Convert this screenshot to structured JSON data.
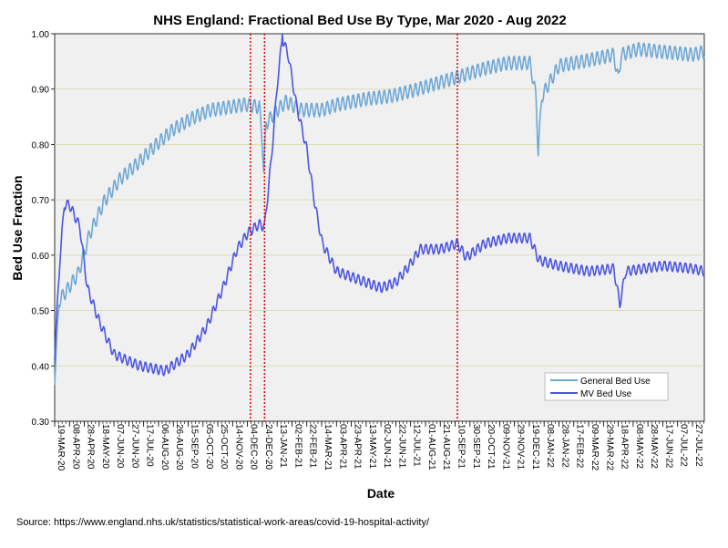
{
  "chart_data": {
    "type": "line",
    "title": "NHS England: Fractional Bed Use By Type, Mar 2020 - Aug 2022",
    "xlabel": "Date",
    "ylabel": "Bed Use Fraction",
    "ylim": [
      0.3,
      1.0
    ],
    "yticks": [
      "0.30",
      "0.40",
      "0.50",
      "0.60",
      "0.70",
      "0.80",
      "0.90",
      "1.00"
    ],
    "grid": "horizontal",
    "x_start": "2020-03-19",
    "x_end": "2022-08-12",
    "xticks": [
      "19-MAR-20",
      "08-APR-20",
      "28-APR-20",
      "18-MAY-20",
      "07-JUN-20",
      "27-JUN-20",
      "17-JUL-20",
      "06-AUG-20",
      "26-AUG-20",
      "15-SEP-20",
      "05-OCT-20",
      "25-OCT-20",
      "14-NOV-20",
      "04-DEC-20",
      "24-DEC-20",
      "13-JAN-21",
      "02-FEB-21",
      "22-FEB-21",
      "14-MAR-21",
      "03-APR-21",
      "23-APR-21",
      "13-MAY-21",
      "02-JUN-21",
      "22-JUN-21",
      "12-JUL-21",
      "01-AUG-21",
      "21-AUG-21",
      "10-SEP-21",
      "30-SEP-21",
      "20-OCT-21",
      "09-NOV-21",
      "29-NOV-21",
      "19-DEC-21",
      "08-JAN-22",
      "28-JAN-22",
      "17-FEB-22",
      "09-MAR-22",
      "29-MAR-22",
      "18-APR-22",
      "08-MAY-22",
      "28-MAY-22",
      "17-JUN-22",
      "07-JUL-22",
      "27-JUL-22"
    ],
    "reference_lines": [
      "2020-12-08",
      "2020-12-27",
      "2021-09-13"
    ],
    "legend": {
      "position": "bottom-right",
      "entries": [
        "General Bed Use",
        "MV Bed Use"
      ]
    },
    "series": [
      {
        "name": "General Bed Use",
        "color": "#6fa8d6",
        "weekly_amplitude": 0.025,
        "anchors": [
          [
            "2020-03-19",
            0.39
          ],
          [
            "2020-03-25",
            0.53
          ],
          [
            "2020-04-05",
            0.55
          ],
          [
            "2020-04-20",
            0.58
          ],
          [
            "2020-05-05",
            0.65
          ],
          [
            "2020-05-25",
            0.71
          ],
          [
            "2020-06-15",
            0.75
          ],
          [
            "2020-07-10",
            0.78
          ],
          [
            "2020-08-01",
            0.81
          ],
          [
            "2020-08-26",
            0.84
          ],
          [
            "2020-09-20",
            0.86
          ],
          [
            "2020-10-15",
            0.875
          ],
          [
            "2020-11-10",
            0.88
          ],
          [
            "2020-12-01",
            0.885
          ],
          [
            "2020-12-20",
            0.88
          ],
          [
            "2020-12-24",
            0.82
          ],
          [
            "2020-12-26",
            0.76
          ],
          [
            "2020-12-29",
            0.85
          ],
          [
            "2021-01-10",
            0.87
          ],
          [
            "2021-01-25",
            0.89
          ],
          [
            "2021-02-15",
            0.875
          ],
          [
            "2021-03-14",
            0.875
          ],
          [
            "2021-04-05",
            0.885
          ],
          [
            "2021-05-13",
            0.895
          ],
          [
            "2021-06-15",
            0.9
          ],
          [
            "2021-07-15",
            0.91
          ],
          [
            "2021-08-21",
            0.925
          ],
          [
            "2021-09-15",
            0.935
          ],
          [
            "2021-10-20",
            0.95
          ],
          [
            "2021-11-20",
            0.96
          ],
          [
            "2021-12-20",
            0.96
          ],
          [
            "2021-12-28",
            0.9
          ],
          [
            "2021-12-31",
            0.8
          ],
          [
            "2022-01-05",
            0.9
          ],
          [
            "2022-01-28",
            0.955
          ],
          [
            "2022-03-09",
            0.965
          ],
          [
            "2022-04-12",
            0.975
          ],
          [
            "2022-04-18",
            0.93
          ],
          [
            "2022-04-22",
            0.975
          ],
          [
            "2022-05-15",
            0.985
          ],
          [
            "2022-06-17",
            0.98
          ],
          [
            "2022-07-27",
            0.975
          ],
          [
            "2022-08-12",
            0.98
          ]
        ]
      },
      {
        "name": "MV Bed Use",
        "color": "#4c56e0",
        "weekly_amplitude": 0.018,
        "anchors": [
          [
            "2020-03-19",
            0.43
          ],
          [
            "2020-03-26",
            0.6
          ],
          [
            "2020-04-01",
            0.7
          ],
          [
            "2020-04-08",
            0.7
          ],
          [
            "2020-04-22",
            0.66
          ],
          [
            "2020-05-02",
            0.55
          ],
          [
            "2020-05-18",
            0.49
          ],
          [
            "2020-06-07",
            0.43
          ],
          [
            "2020-07-10",
            0.41
          ],
          [
            "2020-08-15",
            0.4
          ],
          [
            "2020-09-15",
            0.43
          ],
          [
            "2020-10-10",
            0.48
          ],
          [
            "2020-11-01",
            0.55
          ],
          [
            "2020-11-20",
            0.62
          ],
          [
            "2020-12-05",
            0.65
          ],
          [
            "2020-12-20",
            0.665
          ],
          [
            "2020-12-27",
            0.66
          ],
          [
            "2021-01-05",
            0.78
          ],
          [
            "2021-01-14",
            0.93
          ],
          [
            "2021-01-20",
            1.0
          ],
          [
            "2021-01-28",
            0.97
          ],
          [
            "2021-02-08",
            0.88
          ],
          [
            "2021-02-22",
            0.8
          ],
          [
            "2021-03-05",
            0.7
          ],
          [
            "2021-03-15",
            0.63
          ],
          [
            "2021-04-03",
            0.58
          ],
          [
            "2021-05-13",
            0.56
          ],
          [
            "2021-06-02",
            0.55
          ],
          [
            "2021-06-22",
            0.56
          ],
          [
            "2021-07-10",
            0.59
          ],
          [
            "2021-07-25",
            0.62
          ],
          [
            "2021-08-21",
            0.62
          ],
          [
            "2021-09-13",
            0.63
          ],
          [
            "2021-09-25",
            0.605
          ],
          [
            "2021-10-20",
            0.63
          ],
          [
            "2021-11-20",
            0.64
          ],
          [
            "2021-12-20",
            0.64
          ],
          [
            "2022-01-01",
            0.6
          ],
          [
            "2022-01-28",
            0.59
          ],
          [
            "2022-03-09",
            0.58
          ],
          [
            "2022-04-12",
            0.585
          ],
          [
            "2022-04-20",
            0.52
          ],
          [
            "2022-04-28",
            0.58
          ],
          [
            "2022-06-17",
            0.59
          ],
          [
            "2022-07-27",
            0.585
          ],
          [
            "2022-08-12",
            0.58
          ]
        ]
      }
    ]
  },
  "footer": {
    "source": "Source: https://www.england.nhs.uk/statistics/statistical-work-areas/covid-19-hospital-activity/"
  }
}
